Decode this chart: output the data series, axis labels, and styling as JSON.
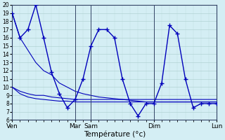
{
  "background_color": "#d4eef4",
  "grid_color": "#aacccc",
  "line_color": "#0000bb",
  "marker": "+",
  "xlabel": "Température (°c)",
  "ylim": [
    6,
    20
  ],
  "yticks": [
    6,
    7,
    8,
    9,
    10,
    11,
    12,
    13,
    14,
    15,
    16,
    17,
    18,
    19,
    20
  ],
  "xtick_labels": [
    "Ven",
    "Mar",
    "Sam",
    "Dim",
    "Lun"
  ],
  "xtick_positions": [
    0,
    8,
    10,
    18,
    26
  ],
  "vline_positions": [
    8,
    10,
    18,
    26
  ],
  "n_points": 27,
  "series": [
    [
      19.0,
      16.0,
      17.0,
      20.0,
      16.0,
      11.8,
      9.2,
      7.5,
      8.5,
      11.0,
      15.0,
      17.0,
      17.0,
      16.0,
      11.0,
      8.0,
      6.5,
      8.0,
      8.0,
      10.5,
      17.5,
      16.5,
      11.0,
      7.5,
      8.0,
      8.0,
      8.0
    ],
    [
      19.0,
      16.0,
      14.5,
      13.0,
      12.0,
      11.5,
      10.5,
      10.0,
      9.5,
      9.2,
      9.0,
      8.8,
      8.7,
      8.6,
      8.5,
      8.4,
      8.3,
      8.2,
      8.2,
      8.2,
      8.2,
      8.2,
      8.2,
      8.2,
      8.2,
      8.2,
      8.2
    ],
    [
      10.0,
      9.5,
      9.2,
      9.0,
      9.0,
      8.8,
      8.7,
      8.6,
      8.5,
      8.5,
      8.5,
      8.5,
      8.5,
      8.5,
      8.5,
      8.5,
      8.5,
      8.5,
      8.5,
      8.5,
      8.5,
      8.5,
      8.5,
      8.5,
      8.5,
      8.5,
      8.5
    ],
    [
      10.0,
      9.2,
      8.8,
      8.6,
      8.5,
      8.4,
      8.3,
      8.3,
      8.2,
      8.2,
      8.2,
      8.2,
      8.2,
      8.2,
      8.2,
      8.2,
      8.2,
      8.2,
      8.2,
      8.2,
      8.2,
      8.2,
      8.2,
      8.2,
      8.2,
      8.2,
      8.2
    ]
  ]
}
